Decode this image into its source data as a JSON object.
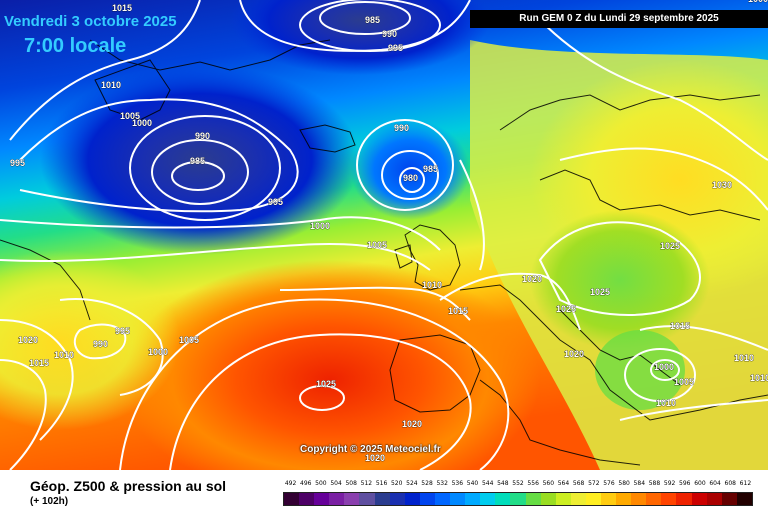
{
  "header": {
    "date_label": "Vendredi 3 octobre 2025",
    "time_label": "7:00 locale",
    "run_label": "Run GEM 0 Z du Lundi 29 septembre 2025"
  },
  "copyright": "Copyright © 2025 Meteociel.fr",
  "footer": {
    "title": "Géop. Z500 & pression au sol",
    "subtitle": "(+ 102h)"
  },
  "legend": {
    "labels": [
      "492",
      "496",
      "500",
      "504",
      "508",
      "512",
      "516",
      "520",
      "524",
      "528",
      "532",
      "536",
      "540",
      "544",
      "548",
      "552",
      "556",
      "560",
      "564",
      "568",
      "572",
      "576",
      "580",
      "584",
      "588",
      "592",
      "596",
      "600",
      "604",
      "608",
      "612"
    ],
    "colors": [
      "#330033",
      "#4d0066",
      "#660099",
      "#7a1fa3",
      "#8a3fae",
      "#5f4fa0",
      "#2b3c8f",
      "#1a2fb0",
      "#0022cc",
      "#0044ee",
      "#0066ff",
      "#0088ff",
      "#00aaff",
      "#00ccee",
      "#00ddbb",
      "#22dd88",
      "#66dd44",
      "#99dd22",
      "#ccee22",
      "#eeee33",
      "#ffee22",
      "#ffcc11",
      "#ffaa00",
      "#ff8800",
      "#ff6600",
      "#ff4400",
      "#ee2200",
      "#cc0000",
      "#aa0000",
      "#660000",
      "#220000"
    ]
  },
  "isobar_labels": [
    {
      "text": "1015"
    },
    {
      "text": "985"
    },
    {
      "text": "990"
    },
    {
      "text": "995"
    },
    {
      "text": "1010"
    },
    {
      "text": "1005"
    },
    {
      "text": "1000"
    },
    {
      "text": "990"
    },
    {
      "text": "985"
    },
    {
      "text": "995"
    },
    {
      "text": "995"
    },
    {
      "text": "990"
    },
    {
      "text": "985"
    },
    {
      "text": "980"
    },
    {
      "text": "1000"
    },
    {
      "text": "1005"
    },
    {
      "text": "1010"
    },
    {
      "text": "1015"
    },
    {
      "text": "1020"
    },
    {
      "text": "1030"
    },
    {
      "text": "1025"
    },
    {
      "text": "1025"
    },
    {
      "text": "1025"
    },
    {
      "text": "1015"
    },
    {
      "text": "1020"
    },
    {
      "text": "1010"
    },
    {
      "text": "1000"
    },
    {
      "text": "1005"
    },
    {
      "text": "1010"
    },
    {
      "text": "995"
    },
    {
      "text": "990"
    },
    {
      "text": "1010"
    },
    {
      "text": "1000"
    },
    {
      "text": "1005"
    },
    {
      "text": "1020"
    },
    {
      "text": "1015"
    },
    {
      "text": "1025"
    },
    {
      "text": "1020"
    },
    {
      "text": "1020"
    },
    {
      "text": "1010"
    },
    {
      "text": "1000"
    }
  ]
}
